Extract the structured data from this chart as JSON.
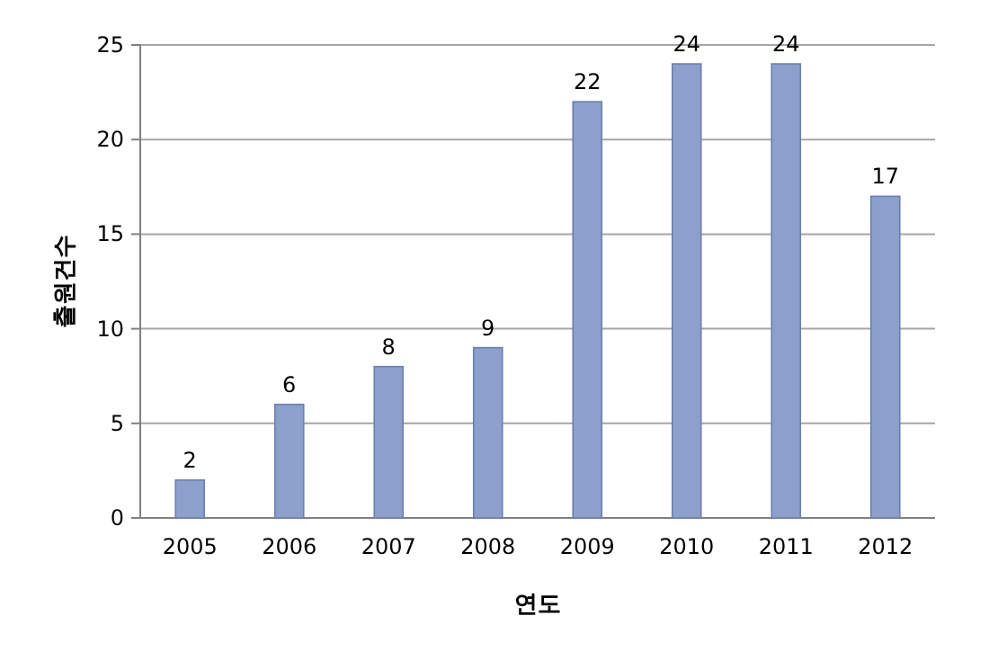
{
  "chart_data": {
    "type": "bar",
    "xlabel": "연도",
    "ylabel": "출원건수",
    "categories": [
      "2005",
      "2006",
      "2007",
      "2008",
      "2009",
      "2010",
      "2011",
      "2012"
    ],
    "values": [
      2,
      6,
      8,
      9,
      22,
      24,
      24,
      17
    ],
    "color": "#8da0cb",
    "ylim": [
      0,
      25
    ],
    "yticks": [
      0,
      5,
      10,
      15,
      20,
      25
    ],
    "grid": "y",
    "data_labels": true
  }
}
